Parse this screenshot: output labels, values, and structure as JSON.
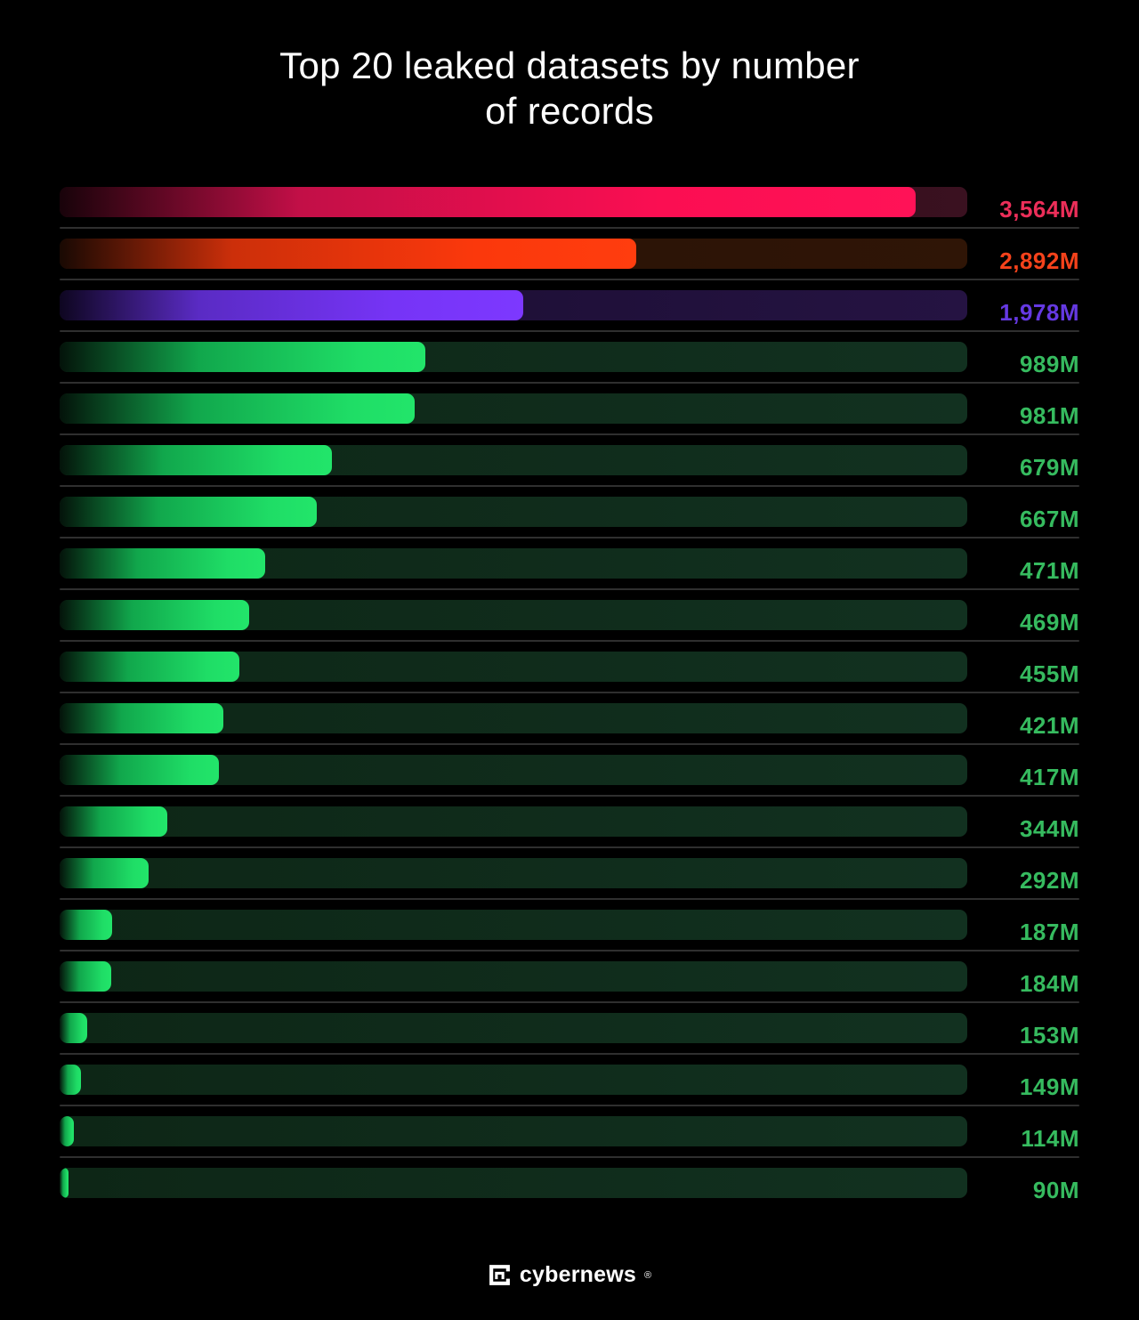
{
  "title": {
    "full": "Top 20 leaked datasets by number of records",
    "lines": [
      "Top 20 leaked datasets by number",
      "of records"
    ]
  },
  "footer": {
    "brand": "cybernews",
    "registered": "®",
    "logo_icon": "cybernews-bracket-mark"
  },
  "colors": {
    "background": "#000000",
    "title_text": "#ffffff",
    "separator": "#2f2f2f",
    "brand_text": "#ffffff"
  },
  "themes": {
    "pink": {
      "fill_stops": [
        [
          "#18030a",
          "0%"
        ],
        [
          "#c20f47",
          "28%"
        ],
        [
          "#fb0e52",
          "70%"
        ],
        [
          "#ff1257",
          "100%"
        ]
      ],
      "track": [
        "#23060d",
        "#3a1120"
      ],
      "label": "#ec2e59"
    },
    "orange": {
      "fill_stops": [
        [
          "#190903",
          "0%"
        ],
        [
          "#cc2f0a",
          "30%"
        ],
        [
          "#fb380c",
          "72%"
        ],
        [
          "#ff3d0e",
          "100%"
        ]
      ],
      "track": [
        "#271106",
        "#2f1506"
      ],
      "label": "#f5421b"
    },
    "purple": {
      "fill_stops": [
        [
          "#0e0620",
          "0%"
        ],
        [
          "#5a2bc4",
          "30%"
        ],
        [
          "#7634f6",
          "72%"
        ],
        [
          "#7d38ff",
          "100%"
        ]
      ],
      "track": [
        "#180c2e",
        "#251342"
      ],
      "label": "#6539e2"
    },
    "green": {
      "fill_stops": [
        [
          "#04130a",
          "0%"
        ],
        [
          "#11a74c",
          "38%"
        ],
        [
          "#1fdd66",
          "82%"
        ],
        [
          "#22e56a",
          "100%"
        ]
      ],
      "track": [
        "#0d2616",
        "#123120"
      ],
      "label": "#36bb5f"
    }
  },
  "bars": [
    {
      "value_label": "3,564M",
      "value_millions": 3564,
      "fill_pct": 94.3,
      "theme": "pink"
    },
    {
      "value_label": "2,892M",
      "value_millions": 2892,
      "fill_pct": 63.5,
      "theme": "orange"
    },
    {
      "value_label": "1,978M",
      "value_millions": 1978,
      "fill_pct": 51.1,
      "theme": "purple"
    },
    {
      "value_label": "989M",
      "value_millions": 989,
      "fill_pct": 40.3,
      "theme": "green"
    },
    {
      "value_label": "981M",
      "value_millions": 981,
      "fill_pct": 39.1,
      "theme": "green"
    },
    {
      "value_label": "679M",
      "value_millions": 679,
      "fill_pct": 30.0,
      "theme": "green"
    },
    {
      "value_label": "667M",
      "value_millions": 667,
      "fill_pct": 28.3,
      "theme": "green"
    },
    {
      "value_label": "471M",
      "value_millions": 471,
      "fill_pct": 22.6,
      "theme": "green"
    },
    {
      "value_label": "469M",
      "value_millions": 469,
      "fill_pct": 20.9,
      "theme": "green"
    },
    {
      "value_label": "455M",
      "value_millions": 455,
      "fill_pct": 19.8,
      "theme": "green"
    },
    {
      "value_label": "421M",
      "value_millions": 421,
      "fill_pct": 18.0,
      "theme": "green"
    },
    {
      "value_label": "417M",
      "value_millions": 417,
      "fill_pct": 17.5,
      "theme": "green"
    },
    {
      "value_label": "344M",
      "value_millions": 344,
      "fill_pct": 11.9,
      "theme": "green"
    },
    {
      "value_label": "292M",
      "value_millions": 292,
      "fill_pct": 9.8,
      "theme": "green"
    },
    {
      "value_label": "187M",
      "value_millions": 187,
      "fill_pct": 5.8,
      "theme": "green"
    },
    {
      "value_label": "184M",
      "value_millions": 184,
      "fill_pct": 5.7,
      "theme": "green"
    },
    {
      "value_label": "153M",
      "value_millions": 153,
      "fill_pct": 3.0,
      "theme": "green"
    },
    {
      "value_label": "149M",
      "value_millions": 149,
      "fill_pct": 2.4,
      "theme": "green"
    },
    {
      "value_label": "114M",
      "value_millions": 114,
      "fill_pct": 1.6,
      "theme": "green"
    },
    {
      "value_label": "90M",
      "value_millions": 90,
      "fill_pct": 1.0,
      "theme": "green"
    }
  ],
  "chart_data": {
    "type": "bar",
    "orientation": "horizontal",
    "title": "Top 20 leaked datasets by number of records",
    "unit": "millions of records",
    "category_labels_visible": false,
    "value_labels": [
      "3,564M",
      "2,892M",
      "1,978M",
      "989M",
      "981M",
      "679M",
      "667M",
      "471M",
      "469M",
      "455M",
      "421M",
      "417M",
      "344M",
      "292M",
      "187M",
      "184M",
      "153M",
      "149M",
      "114M",
      "90M"
    ],
    "values_millions": [
      3564,
      2892,
      1978,
      989,
      981,
      679,
      667,
      471,
      469,
      455,
      421,
      417,
      344,
      292,
      187,
      184,
      153,
      149,
      114,
      90
    ],
    "bar_fill_pct_of_track": [
      94.3,
      63.5,
      51.1,
      40.3,
      39.1,
      30.0,
      28.3,
      22.6,
      20.9,
      19.8,
      18.0,
      17.5,
      11.9,
      9.8,
      5.8,
      5.7,
      3.0,
      2.4,
      1.6,
      1.0
    ],
    "bar_color_themes": [
      "pink",
      "orange",
      "purple",
      "green",
      "green",
      "green",
      "green",
      "green",
      "green",
      "green",
      "green",
      "green",
      "green",
      "green",
      "green",
      "green",
      "green",
      "green",
      "green",
      "green"
    ],
    "highlight_colors": {
      "pink": "#ff1257",
      "orange": "#ff3d0e",
      "purple": "#7d38ff",
      "green": "#22e56a"
    },
    "legend": "none",
    "grid": false,
    "axis_labels": "none",
    "background": "#000000"
  }
}
